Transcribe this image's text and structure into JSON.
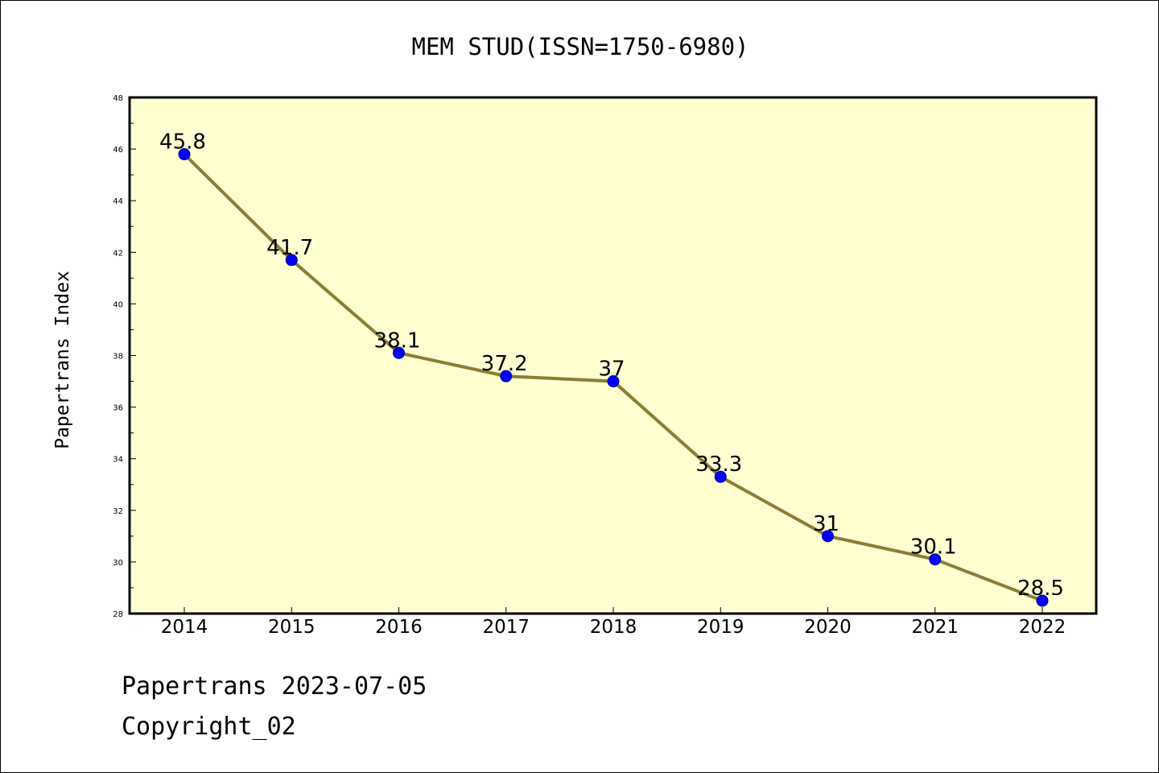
{
  "chart_data": {
    "type": "line",
    "title": "MEM STUD(ISSN=1750-6980)",
    "xlabel": "",
    "ylabel": "Papertrans Index",
    "categories": [
      "2014",
      "2015",
      "2016",
      "2017",
      "2018",
      "2019",
      "2020",
      "2021",
      "2022"
    ],
    "series": [
      {
        "values": [
          45.8,
          41.7,
          38.1,
          37.2,
          37,
          33.3,
          31,
          30.1,
          28.5
        ],
        "data_labels": [
          "45.8",
          "41.7",
          "38.1",
          "37.2",
          "37",
          "33.3",
          "31",
          "30.1",
          "28.5"
        ]
      }
    ],
    "ylim": [
      28,
      48
    ],
    "yticks": [
      "28",
      "30",
      "32",
      "34",
      "36",
      "38",
      "40",
      "42",
      "44",
      "46",
      "48"
    ],
    "grid": false,
    "legend": "none",
    "colors": {
      "plot_background": "#ffffd2",
      "line": "#8b7d35",
      "marker": "#0000ff",
      "marker_edge": "#00008b",
      "axes": "#000000"
    }
  },
  "footer": {
    "line1": "Papertrans 2023-07-05",
    "line2": "Copyright_02"
  }
}
